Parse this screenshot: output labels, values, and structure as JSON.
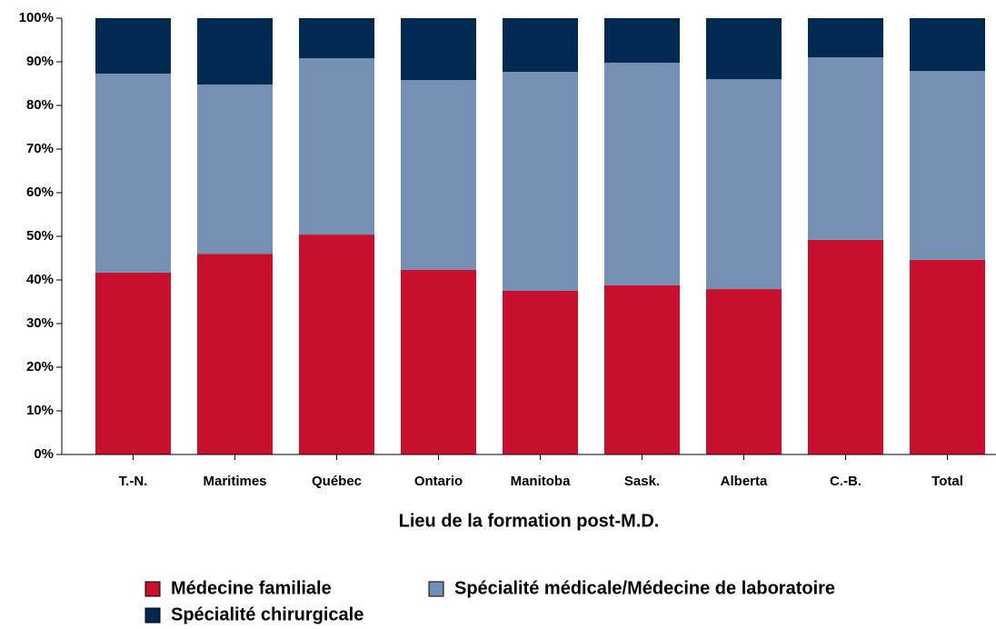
{
  "chart_data": {
    "type": "stacked_bar",
    "x_label": "Lieu de la formation post-M.D.",
    "categories": [
      "T.-N.",
      "Maritimes",
      "Québec",
      "Ontario",
      "Manitoba",
      "Sask.",
      "Alberta",
      "C.-B.",
      "Total"
    ],
    "series": [
      {
        "name": "Médecine familiale",
        "color": "#c8102e",
        "values": [
          41.7,
          46.0,
          50.4,
          42.3,
          37.5,
          38.8,
          37.9,
          49.2,
          44.6
        ]
      },
      {
        "name": "Spécialité médicale/Médecine de laboratoire",
        "color": "#7590b2",
        "values": [
          45.6,
          38.8,
          40.4,
          43.5,
          50.2,
          51.0,
          48.1,
          41.8,
          43.3
        ]
      },
      {
        "name": "Spécialité chirurgicale",
        "color": "#002a52",
        "values": [
          12.7,
          15.2,
          9.2,
          14.2,
          12.3,
          10.2,
          14.0,
          9.0,
          12.1
        ]
      }
    ],
    "ylim": [
      0,
      100
    ],
    "yticks": [
      {
        "value": 0,
        "label": "0%"
      },
      {
        "value": 10,
        "label": "10%"
      },
      {
        "value": 20,
        "label": "20%"
      },
      {
        "value": 30,
        "label": "30%"
      },
      {
        "value": 40,
        "label": "40%"
      },
      {
        "value": 50,
        "label": "50%"
      },
      {
        "value": 60,
        "label": "60%"
      },
      {
        "value": 70,
        "label": "70%"
      },
      {
        "value": 80,
        "label": "80%"
      },
      {
        "value": 90,
        "label": "90%"
      },
      {
        "value": 100,
        "label": "100%"
      }
    ]
  }
}
